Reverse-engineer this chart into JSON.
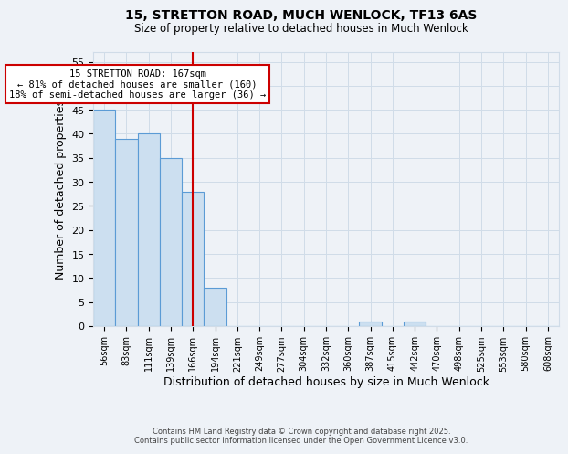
{
  "title": "15, STRETTON ROAD, MUCH WENLOCK, TF13 6AS",
  "subtitle": "Size of property relative to detached houses in Much Wenlock",
  "xlabel": "Distribution of detached houses by size in Much Wenlock",
  "ylabel": "Number of detached properties",
  "categories": [
    "56sqm",
    "83sqm",
    "111sqm",
    "139sqm",
    "166sqm",
    "194sqm",
    "221sqm",
    "249sqm",
    "277sqm",
    "304sqm",
    "332sqm",
    "360sqm",
    "387sqm",
    "415sqm",
    "442sqm",
    "470sqm",
    "498sqm",
    "525sqm",
    "553sqm",
    "580sqm",
    "608sqm"
  ],
  "values": [
    45,
    39,
    40,
    35,
    28,
    8,
    0,
    0,
    0,
    0,
    0,
    0,
    1,
    0,
    1,
    0,
    0,
    0,
    0,
    0,
    0
  ],
  "bar_color": "#ccdff0",
  "bar_edge_color": "#5b9bd5",
  "grid_color": "#d0dce8",
  "background_color": "#eef2f7",
  "vline_x_index": 4,
  "vline_color": "#cc0000",
  "annotation_text": "15 STRETTON ROAD: 167sqm\n← 81% of detached houses are smaller (160)\n18% of semi-detached houses are larger (36) →",
  "annotation_box_color": "#ffffff",
  "annotation_box_edge": "#cc0000",
  "ylim": [
    0,
    57
  ],
  "yticks": [
    0,
    5,
    10,
    15,
    20,
    25,
    30,
    35,
    40,
    45,
    50,
    55
  ],
  "footer_line1": "Contains HM Land Registry data © Crown copyright and database right 2025.",
  "footer_line2": "Contains public sector information licensed under the Open Government Licence v3.0."
}
